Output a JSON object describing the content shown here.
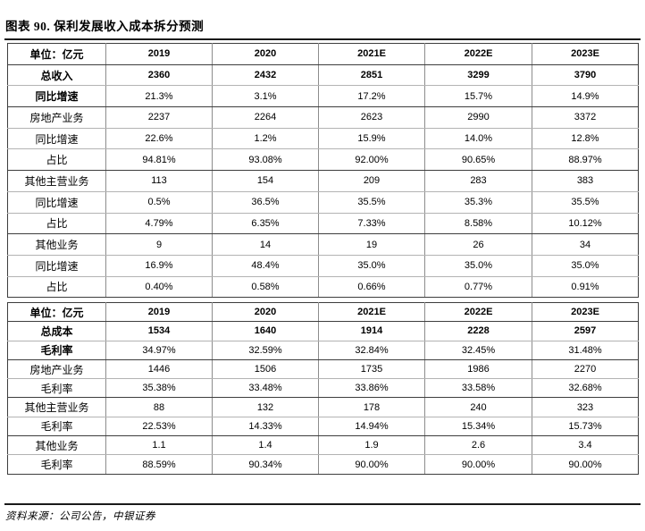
{
  "title": "图表 90. 保利发展收入成本拆分预测",
  "source": "资料来源：公司公告，中银证券",
  "colors": {
    "background": "#ffffff",
    "text": "#000000",
    "rule": "#1a1a1a",
    "table_outer_border": "#3d3d3d",
    "table_inner_horizontal": "#b3b3b3",
    "table_inner_vertical": "#8c8c8c"
  },
  "chart_data": [
    {
      "type": "table",
      "title": "收入拆分",
      "header": [
        "单位：亿元",
        "2019",
        "2020",
        "2021E",
        "2022E",
        "2023E"
      ],
      "rows": [
        {
          "label": "总收入",
          "values": [
            "2360",
            "2432",
            "2851",
            "3299",
            "3790"
          ],
          "emphasis": "row",
          "section_end": false
        },
        {
          "label": "同比增速",
          "values": [
            "21.3%",
            "3.1%",
            "17.2%",
            "15.7%",
            "14.9%"
          ],
          "emphasis": "label",
          "section_end": true
        },
        {
          "label": "房地产业务",
          "values": [
            "2237",
            "2264",
            "2623",
            "2990",
            "3372"
          ],
          "emphasis": null,
          "section_end": false
        },
        {
          "label": "同比增速",
          "values": [
            "22.6%",
            "1.2%",
            "15.9%",
            "14.0%",
            "12.8%"
          ],
          "emphasis": null,
          "section_end": false
        },
        {
          "label": "占比",
          "values": [
            "94.81%",
            "93.08%",
            "92.00%",
            "90.65%",
            "88.97%"
          ],
          "emphasis": null,
          "section_end": true
        },
        {
          "label": "其他主营业务",
          "values": [
            "113",
            "154",
            "209",
            "283",
            "383"
          ],
          "emphasis": null,
          "section_end": false
        },
        {
          "label": "同比增速",
          "values": [
            "0.5%",
            "36.5%",
            "35.5%",
            "35.3%",
            "35.5%"
          ],
          "emphasis": null,
          "section_end": false
        },
        {
          "label": "占比",
          "values": [
            "4.79%",
            "6.35%",
            "7.33%",
            "8.58%",
            "10.12%"
          ],
          "emphasis": null,
          "section_end": true
        },
        {
          "label": "其他业务",
          "values": [
            "9",
            "14",
            "19",
            "26",
            "34"
          ],
          "emphasis": null,
          "section_end": false
        },
        {
          "label": "同比增速",
          "values": [
            "16.9%",
            "48.4%",
            "35.0%",
            "35.0%",
            "35.0%"
          ],
          "emphasis": null,
          "section_end": false
        },
        {
          "label": "占比",
          "values": [
            "0.40%",
            "0.58%",
            "0.66%",
            "0.77%",
            "0.91%"
          ],
          "emphasis": null,
          "section_end": true
        }
      ]
    },
    {
      "type": "table",
      "title": "成本拆分",
      "header": [
        "单位：亿元",
        "2019",
        "2020",
        "2021E",
        "2022E",
        "2023E"
      ],
      "rows": [
        {
          "label": "总成本",
          "values": [
            "1534",
            "1640",
            "1914",
            "2228",
            "2597"
          ],
          "emphasis": "row",
          "section_end": false
        },
        {
          "label": "毛利率",
          "values": [
            "34.97%",
            "32.59%",
            "32.84%",
            "32.45%",
            "31.48%"
          ],
          "emphasis": "label",
          "section_end": true
        },
        {
          "label": "房地产业务",
          "values": [
            "1446",
            "1506",
            "1735",
            "1986",
            "2270"
          ],
          "emphasis": null,
          "section_end": false
        },
        {
          "label": "毛利率",
          "values": [
            "35.38%",
            "33.48%",
            "33.86%",
            "33.58%",
            "32.68%"
          ],
          "emphasis": null,
          "section_end": true
        },
        {
          "label": "其他主营业务",
          "values": [
            "88",
            "132",
            "178",
            "240",
            "323"
          ],
          "emphasis": null,
          "section_end": false
        },
        {
          "label": "毛利率",
          "values": [
            "22.53%",
            "14.33%",
            "14.94%",
            "15.34%",
            "15.73%"
          ],
          "emphasis": null,
          "section_end": true
        },
        {
          "label": "其他业务",
          "values": [
            "1.1",
            "1.4",
            "1.9",
            "2.6",
            "3.4"
          ],
          "emphasis": null,
          "section_end": false
        },
        {
          "label": "毛利率",
          "values": [
            "88.59%",
            "90.34%",
            "90.00%",
            "90.00%",
            "90.00%"
          ],
          "emphasis": null,
          "section_end": true
        }
      ]
    }
  ]
}
